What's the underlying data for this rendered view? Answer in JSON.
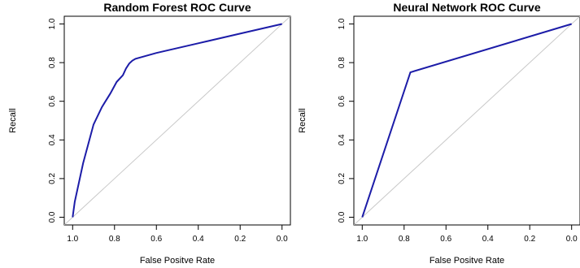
{
  "chart_data": [
    {
      "type": "line",
      "title": "Random Forest ROC Curve",
      "xlabel": "False Positve Rate",
      "ylabel": "Recall",
      "x_reversed": true,
      "xlim": [
        1.04,
        -0.04
      ],
      "ylim": [
        -0.04,
        1.04
      ],
      "x_ticks": [
        1.0,
        0.8,
        0.6,
        0.4,
        0.2,
        0.0
      ],
      "x_tick_labels": [
        "1.0",
        "0.8",
        "0.6",
        "0.4",
        "0.2",
        "0.0"
      ],
      "y_ticks": [
        0.0,
        0.2,
        0.4,
        0.6,
        0.8,
        1.0
      ],
      "y_tick_labels": [
        "0.0",
        "0.2",
        "0.4",
        "0.6",
        "0.8",
        "1.0"
      ],
      "reference_line": "diagonal",
      "colors": {
        "curve": "#1c1ca8",
        "reference": "#c8c8c8"
      },
      "series": [
        {
          "x": [
            1.0,
            0.99,
            0.95,
            0.9,
            0.86,
            0.82,
            0.79,
            0.76,
            0.745,
            0.73,
            0.715,
            0.7,
            0.6,
            0.4,
            0.2,
            0.0
          ],
          "y": [
            0.0,
            0.08,
            0.28,
            0.48,
            0.57,
            0.64,
            0.7,
            0.735,
            0.77,
            0.795,
            0.81,
            0.82,
            0.85,
            0.9,
            0.95,
            1.0
          ]
        }
      ]
    },
    {
      "type": "line",
      "title": "Neural Network ROC Curve",
      "xlabel": "False Positve Rate",
      "ylabel": "Recall",
      "x_reversed": true,
      "xlim": [
        1.04,
        -0.04
      ],
      "ylim": [
        -0.04,
        1.04
      ],
      "x_ticks": [
        1.0,
        0.8,
        0.6,
        0.4,
        0.2,
        0.0
      ],
      "x_tick_labels": [
        "1.0",
        "0.8",
        "0.6",
        "0.4",
        "0.2",
        "0.0"
      ],
      "y_ticks": [
        0.0,
        0.2,
        0.4,
        0.6,
        0.8,
        1.0
      ],
      "y_tick_labels": [
        "0.0",
        "0.2",
        "0.4",
        "0.6",
        "0.8",
        "1.0"
      ],
      "reference_line": "diagonal",
      "colors": {
        "curve": "#1c1ca8",
        "reference": "#c8c8c8"
      },
      "series": [
        {
          "x": [
            1.0,
            0.77,
            0.0
          ],
          "y": [
            0.0,
            0.75,
            1.0
          ]
        }
      ]
    }
  ]
}
